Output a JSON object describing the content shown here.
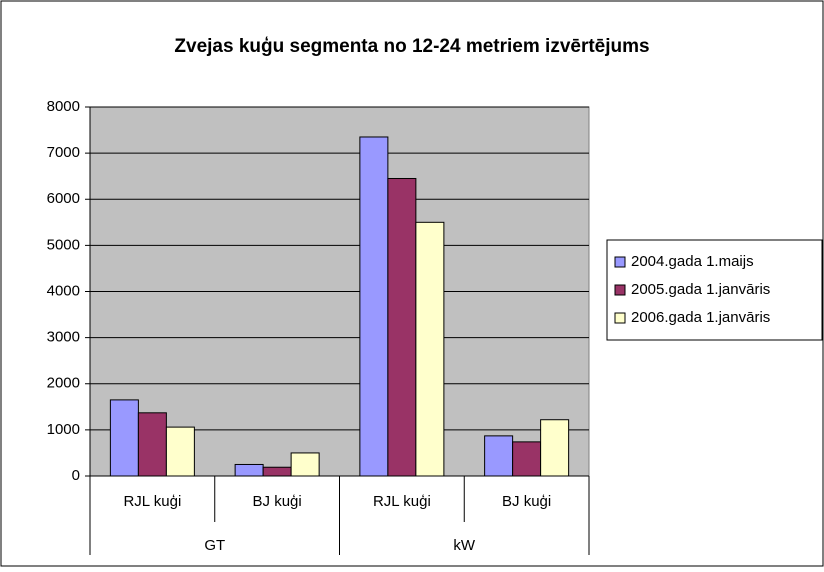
{
  "chart_data": {
    "type": "bar",
    "title": "Zvejas kuģu segmenta no 12-24 metriem izvērtējums",
    "categories": [
      "RJL kuģi",
      "BJ kuģi",
      "RJL kuģi",
      "BJ kuģi"
    ],
    "groups": [
      "GT",
      "kW"
    ],
    "series": [
      {
        "name": "2004.gada 1.maijs",
        "color": "#9999ff",
        "values": [
          1650,
          250,
          7350,
          870
        ]
      },
      {
        "name": "2005.gada 1.janvāris",
        "color": "#993366",
        "values": [
          1370,
          190,
          6450,
          740
        ]
      },
      {
        "name": "2006.gada 1.janvāris",
        "color": "#ffffcc",
        "values": [
          1060,
          500,
          5500,
          1220
        ]
      }
    ],
    "ylim": [
      0,
      8000
    ],
    "yticks": [
      0,
      1000,
      2000,
      3000,
      4000,
      5000,
      6000,
      7000,
      8000
    ],
    "grid": true,
    "legend": "right"
  }
}
